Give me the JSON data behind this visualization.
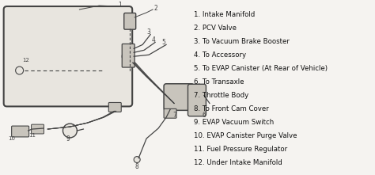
{
  "background_color": "#f5f3f0",
  "legend_items": [
    "1. Intake Manifold",
    "2. PCV Valve",
    "3. To Vacuum Brake Booster",
    "4. To Accessory",
    "5. To EVAP Canister (At Rear of Vehicle)",
    "6. To Transaxle",
    "7. Throttle Body",
    "8. To Front Cam Cover",
    "9. EVAP Vacuum Switch",
    "10. EVAP Canister Purge Valve",
    "11. Fuel Pressure Regulator",
    "12. Under Intake Manifold"
  ],
  "legend_fontsize": 6.2,
  "text_color": "#111111",
  "line_color": "#444444",
  "fill_color": "#e8e5df",
  "fill_dark": "#c8c4bc"
}
